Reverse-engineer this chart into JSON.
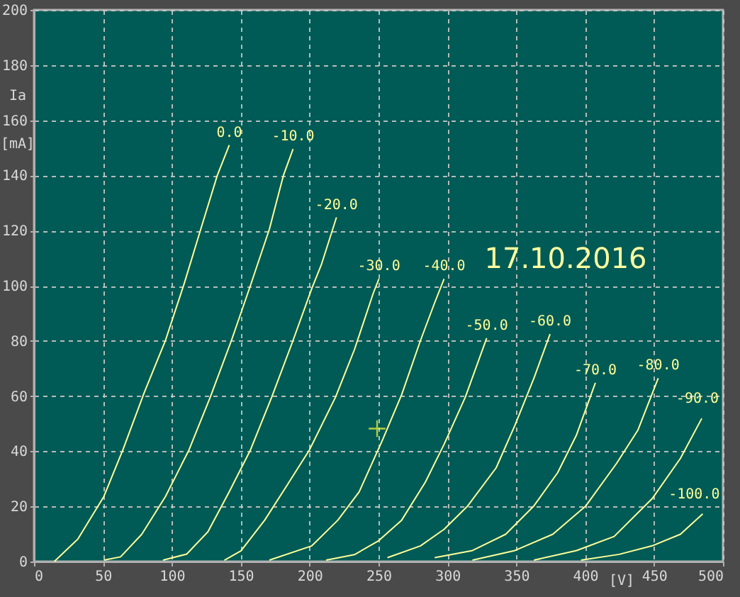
{
  "chart_data": {
    "type": "line",
    "xlabel": "[V]",
    "ylabel": "Ia [mA]",
    "xlim": [
      0,
      500
    ],
    "xticks": [
      0,
      50,
      100,
      150,
      200,
      250,
      300,
      350,
      400,
      450,
      500
    ],
    "ylim": [
      0,
      200
    ],
    "yticks": [
      0,
      20,
      40,
      60,
      80,
      100,
      120,
      140,
      160,
      180,
      200
    ],
    "grid": true,
    "marker": "none",
    "line_style": "solid",
    "annotations": [
      "17.10.2016"
    ],
    "series": [
      {
        "name": "0.0",
        "color": "#ffff99",
        "x": [
          14.7,
          31.9,
          50.7,
          64.5,
          80,
          95.4,
          109,
          121,
          133,
          141.7
        ],
        "values": [
          0,
          8.2,
          23.6,
          40.5,
          61.3,
          80.2,
          100.8,
          120.5,
          140,
          151
        ]
      },
      {
        "name": "-10.0",
        "color": "#ffff99",
        "x": [
          50.7,
          62.8,
          78.2,
          95.4,
          112.5,
          127.9,
          143.3,
          157,
          170.8,
          181,
          188
        ],
        "values": [
          0.5,
          1.7,
          9.9,
          23.6,
          40.5,
          59.6,
          80.2,
          100,
          120.5,
          140,
          149.6
        ]
      },
      {
        "name": "-20.0",
        "color": "#ffff99",
        "x": [
          93.6,
          110.8,
          126.2,
          141.7,
          157.1,
          172.5,
          188,
          201.6,
          208.5,
          219.5
        ],
        "values": [
          0.5,
          2.7,
          10.8,
          25.3,
          40.5,
          59.6,
          80.2,
          99,
          107.6,
          124.8
        ]
      },
      {
        "name": "-30.0",
        "color": "#ffff99",
        "x": [
          138.2,
          150.2,
          167.4,
          182.8,
          199.9,
          218.8,
          232.5,
          246.2,
          250.3
        ],
        "values": [
          0.5,
          3.9,
          15,
          27,
          40.5,
          59.6,
          76.8,
          97.3,
          102.5
        ]
      },
      {
        "name": "-40.0",
        "color": "#ffff99",
        "x": [
          170.8,
          201.6,
          220.5,
          236,
          253,
          266.8,
          280.5,
          290.8,
          297.6
        ],
        "values": [
          0.5,
          5.7,
          15,
          25.3,
          44.2,
          60.5,
          80.2,
          93.9,
          102.5
        ]
      },
      {
        "name": "-50.0",
        "color": "#ffff99",
        "x": [
          212,
          232.5,
          249.7,
          266.8,
          284,
          297.6,
          313,
          328.5
        ],
        "values": [
          0.5,
          2.5,
          7.4,
          15,
          28.8,
          42.5,
          59.6,
          81
        ]
      },
      {
        "name": "-60.0",
        "color": "#ffff99",
        "x": [
          256.5,
          280.5,
          297.6,
          314.8,
          335.4,
          349,
          362.8,
          374.5
        ],
        "values": [
          1.4,
          5.7,
          11.7,
          20.2,
          34,
          49.4,
          66.5,
          82.5
        ]
      },
      {
        "name": "-70.0",
        "color": "#ffff99",
        "x": [
          290.8,
          318.2,
          342.3,
          362.8,
          380,
          393.7,
          407.4
        ],
        "values": [
          1.4,
          4,
          9.9,
          20.2,
          32.2,
          45.9,
          64.8
        ]
      },
      {
        "name": "-80.0",
        "color": "#ffff99",
        "x": [
          318.2,
          349,
          376.5,
          400.5,
          422.8,
          438.3,
          453
        ],
        "values": [
          0.5,
          4,
          9.9,
          20.2,
          35.6,
          47.7,
          66.5
        ]
      },
      {
        "name": "-90.0",
        "color": "#ffff99",
        "x": [
          362.8,
          393.7,
          421,
          448.6,
          469.1,
          484.6
        ],
        "values": [
          0.5,
          4,
          9.1,
          22.8,
          37.4,
          51.9
        ]
      },
      {
        "name": "-100.0",
        "color": "#ffff99",
        "x": [
          397,
          424.6,
          448.6,
          469.1,
          485.3
        ],
        "values": [
          0.5,
          2.6,
          5.7,
          9.9,
          17.3
        ]
      },
      {
        "type": "scatter",
        "marker": "cross",
        "color": "#ffff33",
        "x": [
          249
        ],
        "values": [
          48.2
        ]
      }
    ]
  }
}
